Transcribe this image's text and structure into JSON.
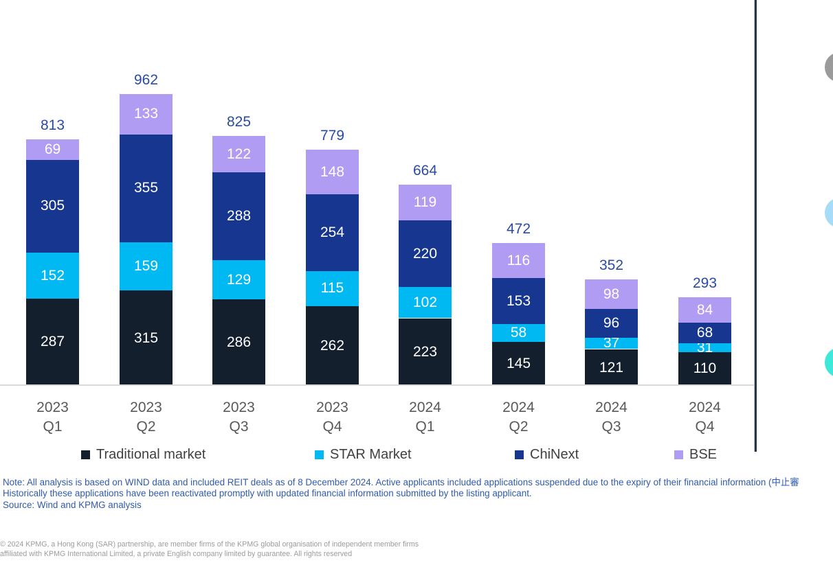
{
  "chart_data": {
    "type": "bar",
    "stacked": true,
    "grid": false,
    "legend_position": "bottom",
    "ylim": [
      0,
      962
    ],
    "categories": [
      {
        "year": "2023",
        "quarter": "Q1"
      },
      {
        "year": "2023",
        "quarter": "Q2"
      },
      {
        "year": "2023",
        "quarter": "Q3"
      },
      {
        "year": "2023",
        "quarter": "Q4"
      },
      {
        "year": "2024",
        "quarter": "Q1"
      },
      {
        "year": "2024",
        "quarter": "Q2"
      },
      {
        "year": "2024",
        "quarter": "Q3"
      },
      {
        "year": "2024",
        "quarter": "Q4"
      }
    ],
    "series": [
      {
        "name": "Traditional market",
        "color": "#141F2D",
        "values": [
          287,
          315,
          286,
          262,
          223,
          145,
          121,
          110
        ]
      },
      {
        "name": "STAR Market",
        "color": "#00B9F2",
        "values": [
          152,
          159,
          129,
          115,
          102,
          58,
          37,
          31
        ]
      },
      {
        "name": "ChiNext",
        "color": "#17368F",
        "values": [
          305,
          355,
          288,
          254,
          220,
          153,
          96,
          68
        ]
      },
      {
        "name": "BSE",
        "color": "#B19CF4",
        "values": [
          69,
          133,
          122,
          148,
          119,
          116,
          98,
          84
        ]
      }
    ],
    "totals": [
      813,
      962,
      825,
      779,
      664,
      472,
      352,
      293
    ],
    "value_label_color": "#FFFFFF",
    "total_label_color": "#2A4BA3"
  },
  "legend": {
    "items": [
      {
        "label": "Traditional market",
        "color": "#141F2D"
      },
      {
        "label": "STAR Market",
        "color": "#00B9F2"
      },
      {
        "label": "ChiNext",
        "color": "#17368F"
      },
      {
        "label": "BSE",
        "color": "#B19CF4"
      }
    ]
  },
  "notes": {
    "line1": "Note: All analysis is based on WIND data and included REIT deals as of 8 December 2024. Active applicants included applications suspended due to the expiry of their financial information (中止審",
    "line2": "Historically these applications have been reactivated promptly with updated financial information submitted by the listing applicant.",
    "line3": "Source: Wind and KPMG analysis"
  },
  "footer": {
    "line1": "© 2024 KPMG, a Hong Kong (SAR) partnership, are member firms of the KPMG global organisation of independent member firms",
    "line2": "affiliated with KPMG International Limited, a private English company limited by guarantee. All rights reserved"
  },
  "decor": {
    "divider_color": "#25344A",
    "circles": [
      {
        "name": "gray-circle",
        "color": "#9B9B9B"
      },
      {
        "name": "light-blue-circle",
        "color": "#A6DCF7"
      },
      {
        "name": "teal-circle",
        "color": "#3EE9DA"
      }
    ]
  }
}
